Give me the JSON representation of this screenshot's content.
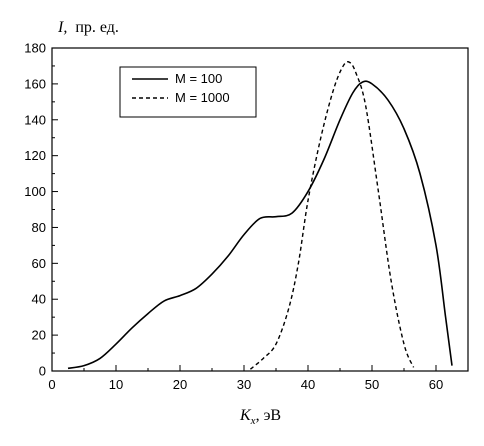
{
  "chart_data": {
    "type": "line",
    "ylabel_sym": "I,",
    "ylabel_unit": "пр. ед.",
    "xlabel_sym": "K",
    "xlabel_sub": "x",
    "xlabel_unit": ",  эВ",
    "xlim": [
      0,
      65
    ],
    "ylim": [
      0,
      180
    ],
    "xticks": [
      0,
      10,
      20,
      30,
      40,
      50,
      60
    ],
    "yticks": [
      0,
      20,
      40,
      60,
      80,
      100,
      120,
      140,
      160,
      180
    ],
    "legend_position": "top-left",
    "series": [
      {
        "name": "M = 100",
        "style": "solid",
        "x": [
          2.5,
          5,
          7.5,
          10,
          12.5,
          15,
          17.5,
          20,
          22.5,
          25,
          27.5,
          30,
          32.5,
          35,
          37.5,
          40,
          42.5,
          45,
          47,
          48.5,
          50,
          52.5,
          55,
          57.5,
          60,
          61.5,
          62.5
        ],
        "y": [
          1.5,
          3,
          7,
          15,
          24,
          32,
          39,
          42,
          46,
          54,
          64,
          76,
          85,
          86,
          88,
          100,
          118,
          140,
          155,
          161,
          160,
          151,
          135,
          110,
          70,
          30,
          3
        ]
      },
      {
        "name": "M = 1000",
        "style": "dashed",
        "x": [
          31,
          33,
          35,
          37,
          38.5,
          40,
          42,
          44,
          45.5,
          46.5,
          47.5,
          49,
          51,
          53,
          55,
          56.5
        ],
        "y": [
          1,
          7,
          15,
          35,
          60,
          95,
          130,
          157,
          170,
          172,
          166,
          148,
          100,
          50,
          15,
          2
        ]
      }
    ]
  }
}
